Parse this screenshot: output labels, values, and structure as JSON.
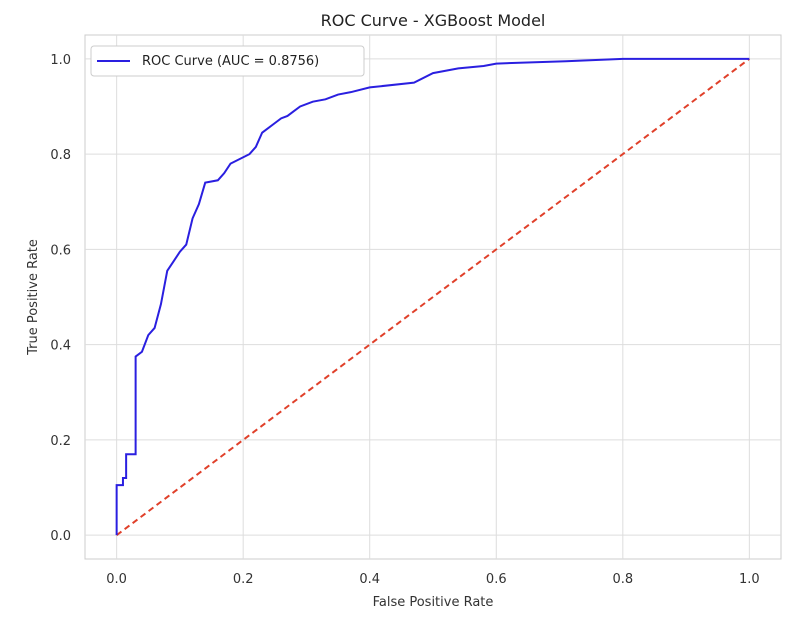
{
  "chart_data": {
    "type": "line",
    "title": "ROC Curve - XGBoost Model",
    "xlabel": "False Positive Rate",
    "ylabel": "True Positive Rate",
    "xlim": [
      -0.05,
      1.05
    ],
    "ylim": [
      -0.05,
      1.05
    ],
    "xticks": [
      "0.0",
      "0.2",
      "0.4",
      "0.6",
      "0.8",
      "1.0"
    ],
    "yticks": [
      "0.0",
      "0.2",
      "0.4",
      "0.6",
      "0.8",
      "1.0"
    ],
    "grid": true,
    "legend": "top-left",
    "series": [
      {
        "name": "ROC Curve (AUC = 0.8756)",
        "color": "#2a1fe0",
        "style": "solid",
        "x": [
          0,
          0,
          0.01,
          0.01,
          0.015,
          0.015,
          0.03,
          0.03,
          0.03,
          0.04,
          0.04,
          0.05,
          0.05,
          0.06,
          0.06,
          0.07,
          0.07,
          0.08,
          0.08,
          0.09,
          0.09,
          0.1,
          0.1,
          0.11,
          0.11,
          0.12,
          0.12,
          0.13,
          0.13,
          0.14,
          0.14,
          0.16,
          0.16,
          0.17,
          0.17,
          0.18,
          0.18,
          0.21,
          0.21,
          0.22,
          0.22,
          0.23,
          0.23,
          0.25,
          0.25,
          0.26,
          0.26,
          0.27,
          0.27,
          0.28,
          0.28,
          0.29,
          0.29,
          0.31,
          0.31,
          0.33,
          0.33,
          0.35,
          0.35,
          0.37,
          0.37,
          0.4,
          0.4,
          0.47,
          0.47,
          0.5,
          0.5,
          0.54,
          0.54,
          0.58,
          0.58,
          0.6,
          0.6,
          0.71,
          0.71,
          0.8,
          0.8,
          1.0
        ],
        "y": [
          0,
          0.105,
          0.105,
          0.12,
          0.12,
          0.17,
          0.17,
          0.375,
          0.375,
          0.385,
          0.385,
          0.42,
          0.42,
          0.435,
          0.435,
          0.485,
          0.485,
          0.555,
          0.555,
          0.575,
          0.575,
          0.595,
          0.595,
          0.61,
          0.61,
          0.665,
          0.665,
          0.695,
          0.695,
          0.74,
          0.74,
          0.745,
          0.745,
          0.76,
          0.76,
          0.78,
          0.78,
          0.8,
          0.8,
          0.815,
          0.815,
          0.845,
          0.845,
          0.865,
          0.865,
          0.875,
          0.875,
          0.88,
          0.88,
          0.89,
          0.89,
          0.9,
          0.9,
          0.91,
          0.91,
          0.915,
          0.915,
          0.925,
          0.925,
          0.93,
          0.93,
          0.94,
          0.94,
          0.95,
          0.95,
          0.97,
          0.97,
          0.98,
          0.98,
          0.985,
          0.985,
          0.99,
          0.99,
          0.995,
          0.995,
          1.0,
          1.0,
          1.0
        ]
      },
      {
        "name": "",
        "color": "#e0402a",
        "style": "dashed",
        "x": [
          0,
          1
        ],
        "y": [
          0,
          1
        ]
      }
    ]
  }
}
